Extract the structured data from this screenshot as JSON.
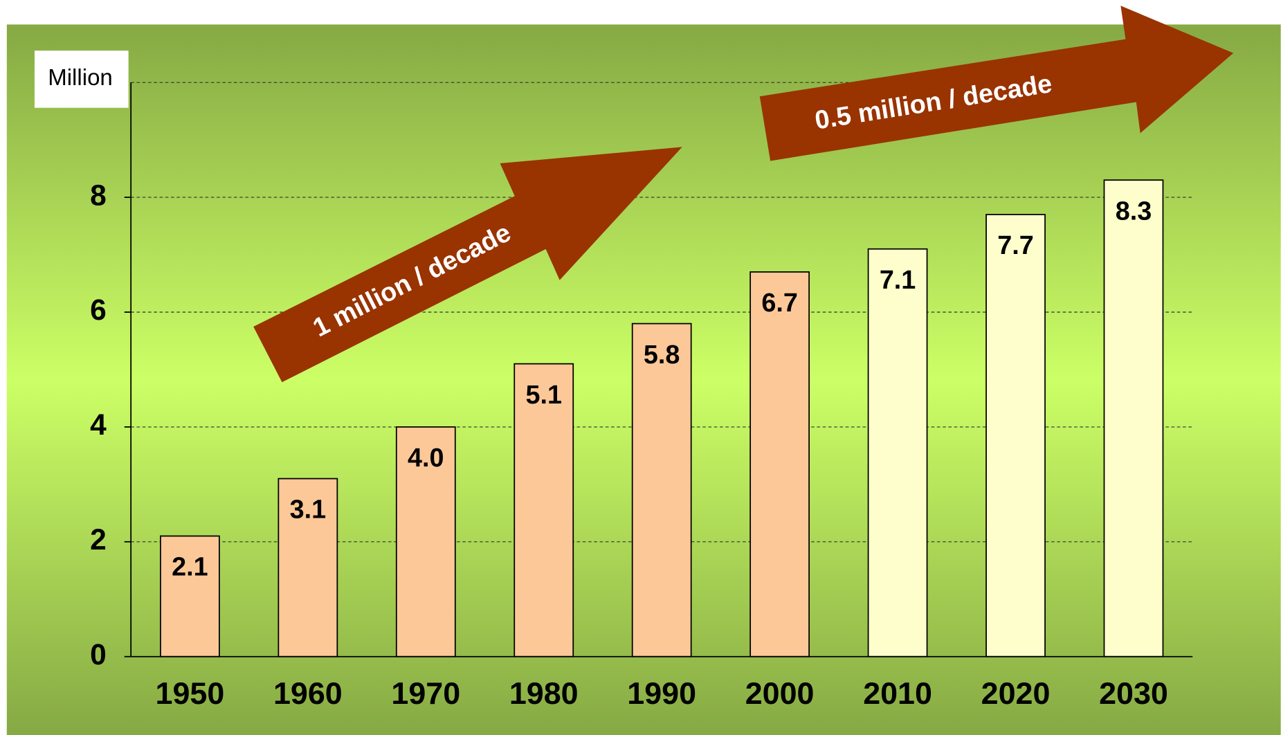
{
  "chart_data": {
    "type": "bar",
    "y_label": "Million",
    "categories": [
      "1950",
      "1960",
      "1970",
      "1980",
      "1990",
      "2000",
      "2010",
      "2020",
      "2030"
    ],
    "values": [
      2.1,
      3.1,
      4.0,
      5.1,
      5.8,
      6.7,
      7.1,
      7.7,
      8.3
    ],
    "value_labels": [
      "2.1",
      "3.1",
      "4.0",
      "5.1",
      "5.8",
      "6.7",
      "7.1",
      "7.7",
      "8.3"
    ],
    "colors": [
      "#fdc898",
      "#fdc898",
      "#fdc898",
      "#fdc898",
      "#fdc898",
      "#fdc898",
      "#fefecc",
      "#fefecc",
      "#fefecc"
    ],
    "ylim": [
      0,
      10
    ],
    "yticks": [
      0,
      2,
      4,
      6,
      8
    ],
    "grid": true,
    "annotations": [
      "1 million / decade",
      "0.5 million / decade"
    ]
  }
}
